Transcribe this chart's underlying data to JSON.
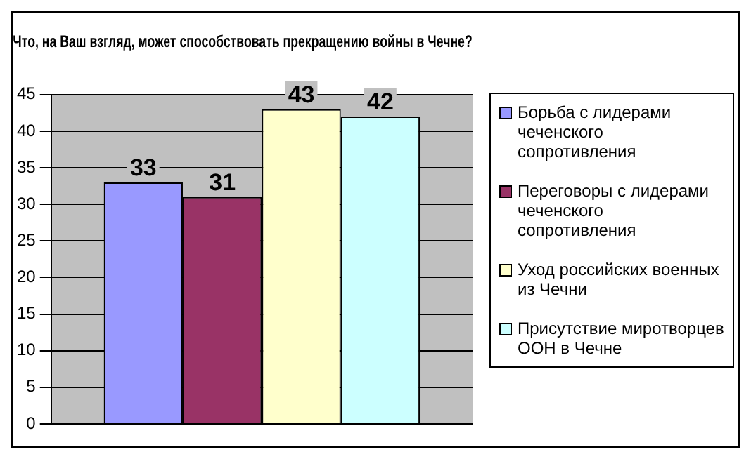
{
  "chart_data": {
    "type": "bar",
    "title": "Что, на Ваш взгляд, может способствовать прекращению войны в Чечне?",
    "categories": [
      null
    ],
    "series": [
      {
        "name": "Борьба с лидерами чеченского сопротивления",
        "color": "#9999ff",
        "values": [
          33
        ]
      },
      {
        "name": "Переговоры с лидерами чеченского сопротивления",
        "color": "#993366",
        "values": [
          31
        ]
      },
      {
        "name": "Уход российских военных из Чечни",
        "color": "#ffffcc",
        "values": [
          43
        ]
      },
      {
        "name": "Присутствие миротворцев ООН в Чечне",
        "color": "#ccffff",
        "values": [
          42
        ]
      }
    ],
    "ylim": [
      0,
      45
    ],
    "yticks": [
      0,
      5,
      10,
      15,
      20,
      25,
      30,
      35,
      40,
      45
    ],
    "grid": "y",
    "legend": "right",
    "data_labels": true
  }
}
